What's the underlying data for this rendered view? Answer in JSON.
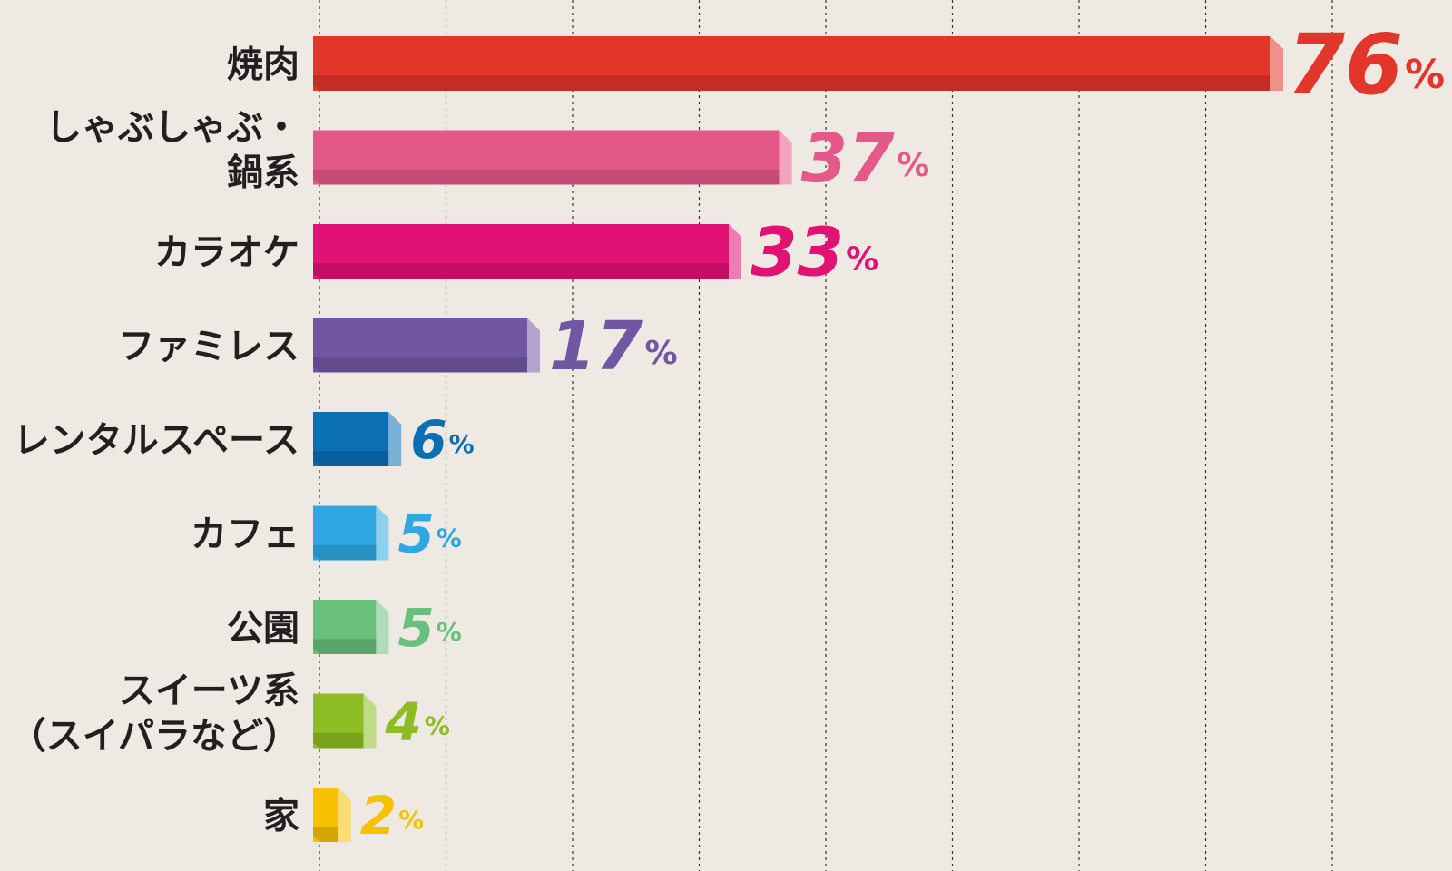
{
  "chart_data": {
    "type": "bar",
    "orientation": "horizontal",
    "title": "",
    "xlabel": "",
    "ylabel": "",
    "xlim": [
      0,
      100
    ],
    "grid": true,
    "unit": "%",
    "categories": [
      {
        "label_lines": [
          "焼肉"
        ],
        "value": 76,
        "value_text": "76",
        "color": "#e2362a"
      },
      {
        "label_lines": [
          "しゃぶしゃぶ・",
          "鍋系"
        ],
        "value": 37,
        "value_text": "37",
        "color": "#e5588a"
      },
      {
        "label_lines": [
          "カラオケ"
        ],
        "value": 33,
        "value_text": "33",
        "color": "#e21274"
      },
      {
        "label_lines": [
          "ファミレス"
        ],
        "value": 17,
        "value_text": "17",
        "color": "#7157a2"
      },
      {
        "label_lines": [
          "レンタルスペース"
        ],
        "value": 6,
        "value_text": "6",
        "color": "#0b6fb4"
      },
      {
        "label_lines": [
          "カフェ"
        ],
        "value": 5,
        "value_text": "5",
        "color": "#2fa7e0"
      },
      {
        "label_lines": [
          "公園"
        ],
        "value": 5,
        "value_text": "5",
        "color": "#69c07c"
      },
      {
        "label_lines": [
          "スイーツ系",
          "（スイパラなど）"
        ],
        "value": 4,
        "value_text": "4",
        "color": "#8dbd24"
      },
      {
        "label_lines": [
          "家"
        ],
        "value": 2,
        "value_text": "2",
        "color": "#f6c200"
      }
    ]
  }
}
